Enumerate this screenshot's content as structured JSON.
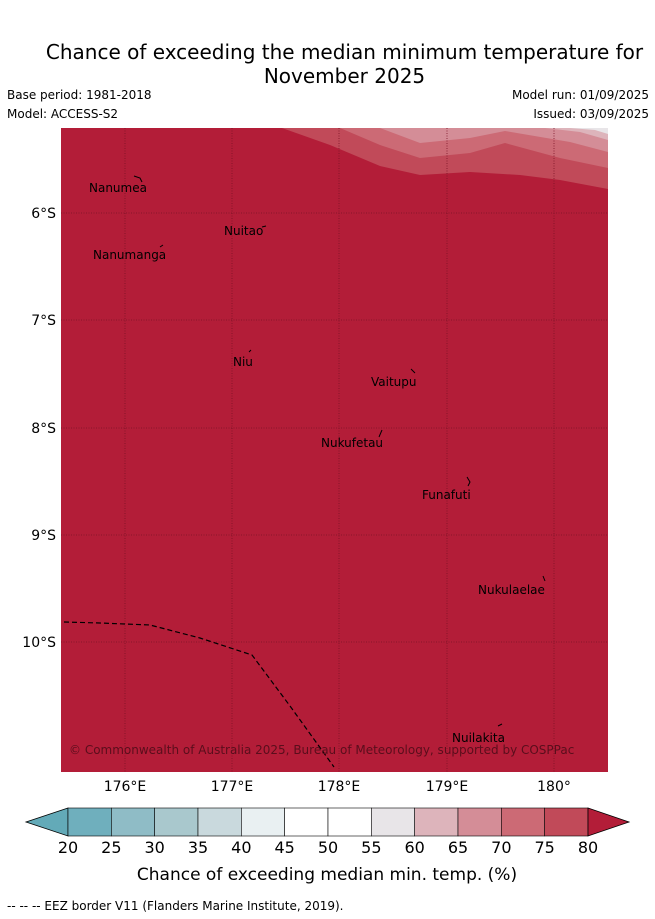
{
  "title": "Chance of exceeding the median minimum temperature for November 2025",
  "meta": {
    "base_period": "Base period: 1981-2018",
    "model": "Model: ACCESS-S2",
    "model_run": "Model run: 01/09/2025",
    "issued": "Issued: 03/09/2025"
  },
  "map": {
    "lon_labels": [
      "176°E",
      "177°E",
      "178°E",
      "179°E",
      "180°"
    ],
    "lat_labels": [
      "6°S",
      "7°S",
      "8°S",
      "9°S",
      "10°S"
    ],
    "islands": [
      {
        "name": "Nanumea"
      },
      {
        "name": "Nuitao"
      },
      {
        "name": "Nanumanga"
      },
      {
        "name": "Niu"
      },
      {
        "name": "Vaitupu"
      },
      {
        "name": "Nukufetau"
      },
      {
        "name": "Funafuti"
      },
      {
        "name": "Nukulaelae"
      },
      {
        "name": "Nuilakita"
      }
    ],
    "copyright": "© Commonwealth of Australia 2025, Bureau of Meteorology, supported by COSPPac"
  },
  "colorbar": {
    "ticks": [
      "20",
      "25",
      "30",
      "35",
      "40",
      "45",
      "50",
      "55",
      "60",
      "65",
      "70",
      "75",
      "80"
    ],
    "colors": [
      "#63aab8",
      "#6fafbd",
      "#8fbcc6",
      "#a9c8cd",
      "#c9d9dd",
      "#e9f0f2",
      "#ffffff",
      "#ffffff",
      "#e8e5e8",
      "#ddb4bb",
      "#d48d97",
      "#cc6a75",
      "#c14a59",
      "#b31d38"
    ],
    "label": "Chance of exceeding median min. temp. (%)"
  },
  "legend": "-- -- -- EEZ border V11 (Flanders Marine Institute, 2019)."
}
